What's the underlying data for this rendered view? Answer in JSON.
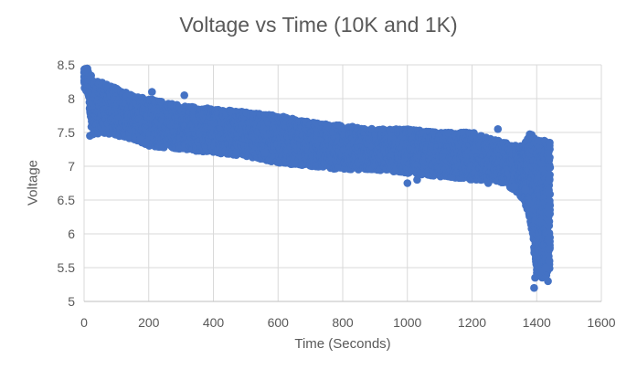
{
  "chart_data": {
    "type": "scatter",
    "title": "Voltage vs Time (10K and 1K)",
    "xlabel": "Time (Seconds)",
    "ylabel": "Voltage",
    "xlim": [
      0,
      1600
    ],
    "ylim": [
      5,
      8.5
    ],
    "x_ticks": [
      "0",
      "200",
      "400",
      "600",
      "800",
      "1000",
      "1200",
      "1400",
      "1600"
    ],
    "y_ticks": [
      "5",
      "5.5",
      "6",
      "6.5",
      "7",
      "7.5",
      "8",
      "8.5"
    ],
    "grid": true,
    "legend": "none",
    "marker_color": "#4472C4",
    "series": [
      {
        "band_x": [
          0,
          10,
          25,
          50,
          100,
          150,
          200,
          300,
          400,
          500,
          600,
          700,
          800,
          900,
          1000,
          1100,
          1200,
          1300,
          1340,
          1360,
          1380,
          1400,
          1420,
          1440
        ],
        "band_upper": [
          8.45,
          8.45,
          8.3,
          8.25,
          8.15,
          8.05,
          8.0,
          7.9,
          7.85,
          7.8,
          7.75,
          7.65,
          7.6,
          7.55,
          7.55,
          7.5,
          7.5,
          7.35,
          7.3,
          7.3,
          7.5,
          7.4,
          7.4,
          7.4
        ],
        "band_lower": [
          8.15,
          8.1,
          7.45,
          7.5,
          7.45,
          7.4,
          7.3,
          7.25,
          7.2,
          7.15,
          7.05,
          7.0,
          6.95,
          6.95,
          6.9,
          6.85,
          6.8,
          6.75,
          6.6,
          6.5,
          6.2,
          5.4,
          5.3,
          5.5
        ],
        "outliers": [
          [
            18,
            7.45
          ],
          [
            175,
            7.4
          ],
          [
            190,
            7.35
          ],
          [
            210,
            8.1
          ],
          [
            310,
            8.05
          ],
          [
            560,
            7.2
          ],
          [
            1000,
            6.75
          ],
          [
            1030,
            6.8
          ],
          [
            1250,
            6.75
          ],
          [
            1280,
            7.55
          ],
          [
            1330,
            6.7
          ],
          [
            1365,
            6.65
          ],
          [
            1392,
            5.2
          ],
          [
            1395,
            5.35
          ],
          [
            1410,
            5.45
          ],
          [
            1428,
            5.5
          ],
          [
            1435,
            5.3
          ]
        ]
      }
    ]
  }
}
